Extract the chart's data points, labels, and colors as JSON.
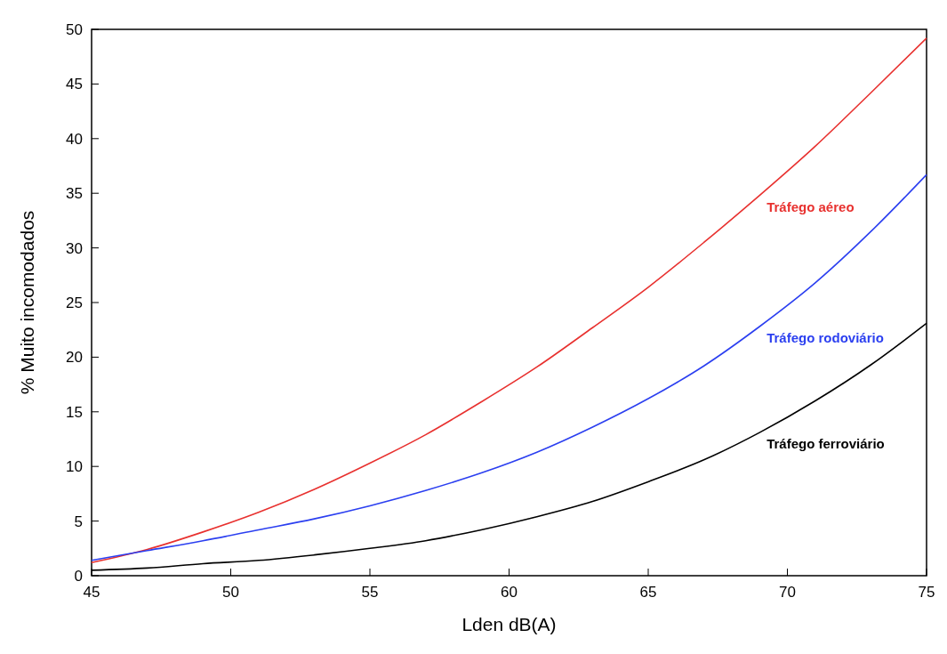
{
  "chart_data": {
    "type": "line",
    "xlabel": "Lden dB(A)",
    "ylabel": "% Muito incomodados",
    "x": [
      45,
      47,
      49,
      51,
      53,
      55,
      57,
      59,
      61,
      63,
      65,
      67,
      69,
      71,
      73,
      75
    ],
    "series": [
      {
        "name": "Tráfego aéreo",
        "color": "#e8312f",
        "values": [
          1.2,
          2.4,
          4.0,
          5.8,
          7.9,
          10.3,
          12.9,
          15.9,
          19.1,
          22.7,
          26.4,
          30.5,
          34.8,
          39.3,
          44.2,
          49.2
        ]
      },
      {
        "name": "Tráfego rodoviário",
        "color": "#2b3ff0",
        "values": [
          1.4,
          2.3,
          3.2,
          4.2,
          5.2,
          6.4,
          7.8,
          9.4,
          11.3,
          13.6,
          16.2,
          19.2,
          22.8,
          26.8,
          31.5,
          36.7
        ]
      },
      {
        "name": "Tráfego ferroviário",
        "color": "#000000",
        "values": [
          0.5,
          0.7,
          1.1,
          1.4,
          1.9,
          2.5,
          3.2,
          4.2,
          5.4,
          6.8,
          8.6,
          10.6,
          13.1,
          16.0,
          19.3,
          23.1
        ]
      }
    ],
    "xlim": [
      45,
      75
    ],
    "xticks": [
      45,
      50,
      55,
      60,
      65,
      70,
      75
    ],
    "ylim": [
      0,
      50
    ],
    "yticks": [
      0,
      5,
      10,
      15,
      20,
      25,
      30,
      35,
      40,
      45,
      50
    ],
    "grid": false,
    "marker": "none",
    "line_style": "solid"
  }
}
